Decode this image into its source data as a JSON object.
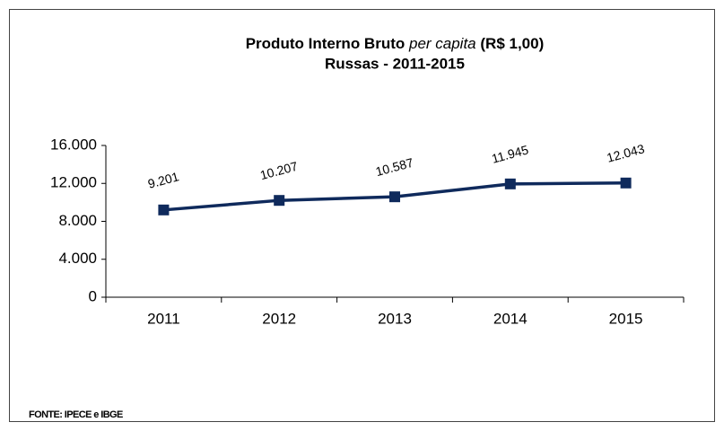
{
  "chart_data": {
    "type": "line",
    "title": [
      "Produto Interno Bruto",
      "per capita",
      "(R$ 1,00)"
    ],
    "subtitle": "Russas - 2011-2015",
    "categories": [
      "2011",
      "2012",
      "2013",
      "2014",
      "2015"
    ],
    "values": [
      9201,
      10207,
      10587,
      11945,
      12043
    ],
    "value_labels": [
      "9.201",
      "10.207",
      "10.587",
      "11.945",
      "12.043"
    ],
    "color": "#0f2a5c",
    "ylim": [
      0,
      16000
    ],
    "yticks": [
      0,
      {
        "value": 4000,
        "label": "4.000"
      },
      {
        "value": 8000,
        "label": "8.000"
      },
      {
        "value": 12000,
        "label": "12.000"
      },
      {
        "value": 16000,
        "label": "16.000"
      }
    ],
    "source": "FONTE: IPECE e IBGE"
  }
}
